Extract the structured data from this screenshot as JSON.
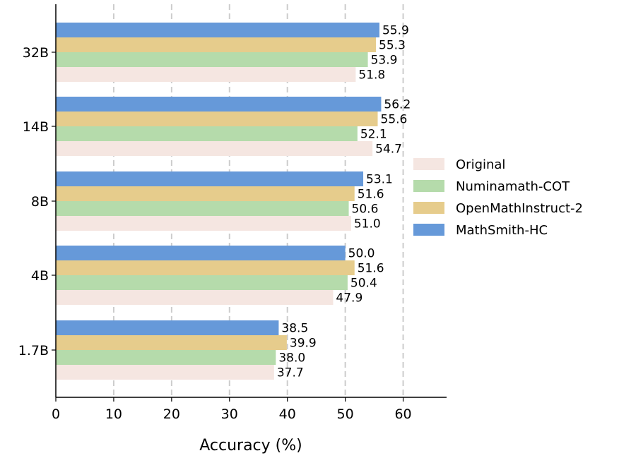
{
  "chart_data": {
    "type": "bar",
    "orientation": "horizontal",
    "title": "",
    "xlabel": "Accuracy (%)",
    "ylabel": "",
    "xlim": [
      0,
      67.5
    ],
    "xticks": [
      0,
      10,
      20,
      30,
      40,
      50,
      60
    ],
    "grid": "vertical dashed",
    "legend_position": "right",
    "categories": [
      "32B",
      "14B",
      "8B",
      "4B",
      "1.7B"
    ],
    "series": [
      {
        "name": "MathSmith-HC",
        "color": "#6699d9",
        "values": [
          55.9,
          56.2,
          53.1,
          50.0,
          38.5
        ],
        "labels": [
          "55.9",
          "56.2",
          "53.1",
          "50.0",
          "38.5"
        ]
      },
      {
        "name": "OpenMathInstruct-2",
        "color": "#e6cc8c",
        "values": [
          55.3,
          55.6,
          51.6,
          51.6,
          39.9
        ],
        "labels": [
          "55.3",
          "55.6",
          "51.6",
          "51.6",
          "39.9"
        ]
      },
      {
        "name": "Numinamath-COT",
        "color": "#b5dbab",
        "values": [
          53.9,
          52.1,
          50.6,
          50.4,
          38.0
        ],
        "labels": [
          "53.9",
          "52.1",
          "50.6",
          "50.4",
          "38.0"
        ]
      },
      {
        "name": "Original",
        "color": "#f5e6e1",
        "values": [
          51.8,
          54.7,
          51.0,
          47.9,
          37.7
        ],
        "labels": [
          "51.8",
          "54.7",
          "51.0",
          "47.9",
          "37.7"
        ]
      }
    ],
    "legend_order": [
      "Original",
      "Numinamath-COT",
      "OpenMathInstruct-2",
      "MathSmith-HC"
    ]
  }
}
